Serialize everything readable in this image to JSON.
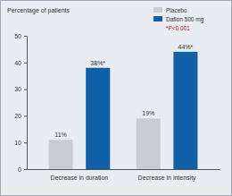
{
  "chart_data": {
    "type": "bar",
    "title": "Percentage of patients",
    "categories": [
      "Decrease in duration",
      "Decrease in intensity"
    ],
    "series": [
      {
        "name": "Placebo",
        "color": "#c9cdd1",
        "values": [
          11,
          19
        ],
        "value_labels": [
          "11%",
          "19%"
        ]
      },
      {
        "name": "Daflon 500 mg",
        "color": "#1060a8",
        "values": [
          38,
          44
        ],
        "value_labels": [
          "38%*",
          "44%*"
        ]
      }
    ],
    "ylim": [
      0,
      50
    ],
    "yticks": [
      0,
      10,
      20,
      30,
      40,
      50
    ],
    "grid": false,
    "legend": "upper right",
    "data_labels": true,
    "annotations": [
      "*P<0.001"
    ]
  }
}
